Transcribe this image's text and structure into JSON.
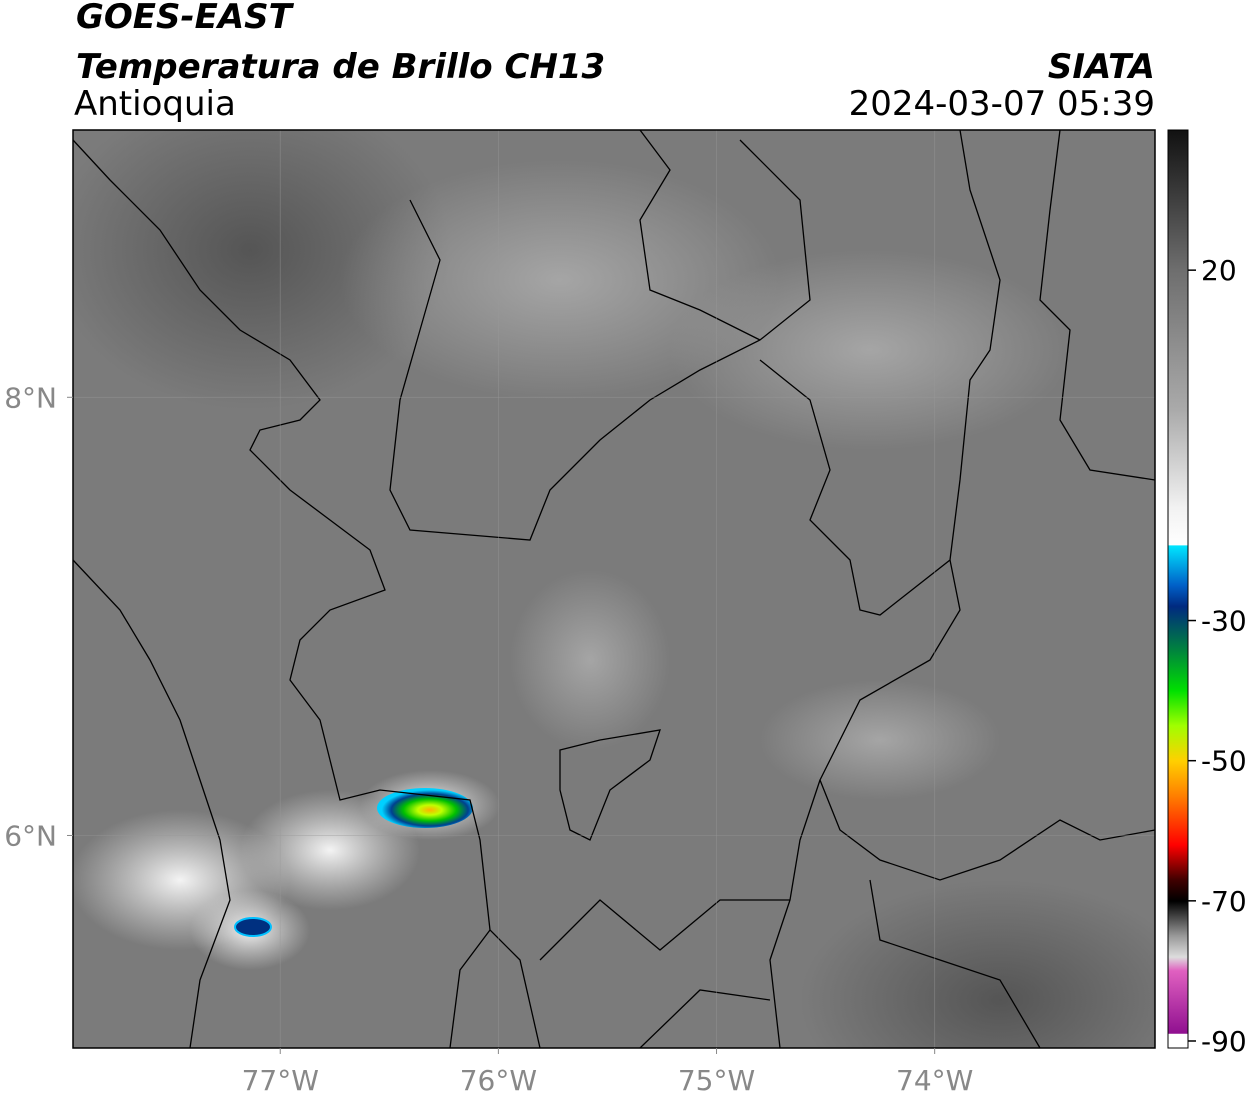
{
  "header": {
    "title": "GOES-EAST",
    "subtitle": "Temperatura de Brillo CH13",
    "region": "Antioquia",
    "source": "SIATA",
    "timestamp": "2024-03-07 05:39"
  },
  "map": {
    "xlim": [
      -77.95,
      -72.99
    ],
    "ylim": [
      5.03,
      9.22
    ],
    "xticks": [
      {
        "value": -77,
        "label": "77°W"
      },
      {
        "value": -76,
        "label": "76°W"
      },
      {
        "value": -75,
        "label": "75°W"
      },
      {
        "value": -74,
        "label": "74°W"
      }
    ],
    "yticks": [
      {
        "value": 8,
        "label": "8°N"
      },
      {
        "value": 6,
        "label": "6°N"
      }
    ],
    "grid": true
  },
  "colorbar": {
    "clim": [
      -91,
      40
    ],
    "ticks": [
      20,
      -30,
      -50,
      -70,
      -90
    ]
  }
}
